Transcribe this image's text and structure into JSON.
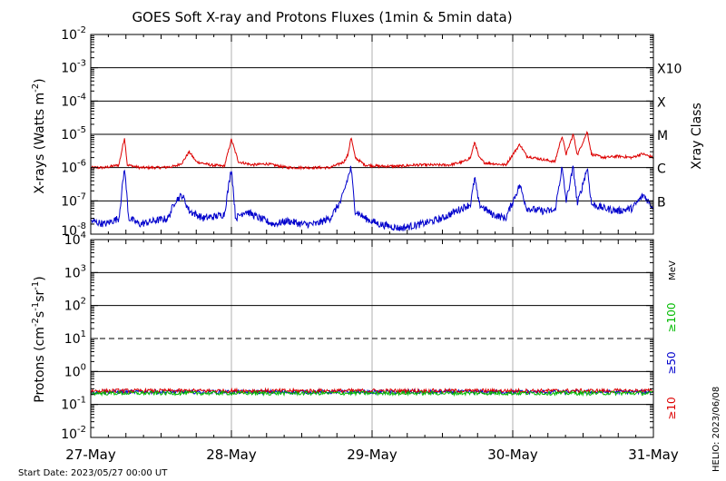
{
  "chart_data": [
    {
      "type": "line",
      "panel": "xray",
      "title": "GOES Soft X-ray and Protons Fluxes   (1min & 5min data)",
      "ylabel": "X-rays (Watts m",
      "ylabel_sup": "-2",
      "ylabel_end": ")",
      "y_scale": "log",
      "ylim": [
        1e-08,
        0.01
      ],
      "y_ticks": [
        {
          "exp": -8,
          "base": "10",
          "sup": "-8"
        },
        {
          "exp": -7,
          "base": "10",
          "sup": "-7"
        },
        {
          "exp": -6,
          "base": "10",
          "sup": "-6"
        },
        {
          "exp": -5,
          "base": "10",
          "sup": "-5"
        },
        {
          "exp": -4,
          "base": "10",
          "sup": "-4"
        },
        {
          "exp": -3,
          "base": "10",
          "sup": "-3"
        },
        {
          "exp": -2,
          "base": "10",
          "sup": "-2"
        }
      ],
      "grid_exps": [
        -7,
        -6,
        -5,
        -4,
        -3
      ],
      "right_label": "Xray Class",
      "class_labels": [
        {
          "exp": -7,
          "label": "B"
        },
        {
          "exp": -6,
          "label": "C"
        },
        {
          "exp": -5,
          "label": "M"
        },
        {
          "exp": -4,
          "label": "X"
        },
        {
          "exp": -3,
          "label": "X10"
        }
      ],
      "series": [
        {
          "color": "#dd0000",
          "values": [
            [
              0.0,
              1e-06
            ],
            [
              0.1,
              1e-06
            ],
            [
              0.2,
              1.2e-06
            ],
            [
              0.24,
              8e-06
            ],
            [
              0.26,
              1.2e-06
            ],
            [
              0.35,
              1e-06
            ],
            [
              0.5,
              1e-06
            ],
            [
              0.6,
              1.1e-06
            ],
            [
              0.65,
              1.4e-06
            ],
            [
              0.7,
              3e-06
            ],
            [
              0.75,
              1.5e-06
            ],
            [
              0.85,
              1.2e-06
            ],
            [
              0.95,
              1.1e-06
            ],
            [
              1.0,
              7e-06
            ],
            [
              1.05,
              1.5e-06
            ],
            [
              1.15,
              1.2e-06
            ],
            [
              1.25,
              1.3e-06
            ],
            [
              1.4,
              1e-06
            ],
            [
              1.6,
              1e-06
            ],
            [
              1.7,
              1e-06
            ],
            [
              1.75,
              1.2e-06
            ],
            [
              1.8,
              1.5e-06
            ],
            [
              1.83,
              2.5e-06
            ],
            [
              1.85,
              8.5e-06
            ],
            [
              1.88,
              2e-06
            ],
            [
              1.95,
              1.2e-06
            ],
            [
              2.05,
              1.1e-06
            ],
            [
              2.2,
              1.1e-06
            ],
            [
              2.3,
              1.2e-06
            ],
            [
              2.4,
              1.2e-06
            ],
            [
              2.55,
              1.2e-06
            ],
            [
              2.65,
              1.5e-06
            ],
            [
              2.7,
              2e-06
            ],
            [
              2.73,
              6e-06
            ],
            [
              2.76,
              2e-06
            ],
            [
              2.8,
              1.4e-06
            ],
            [
              2.95,
              1.2e-06
            ],
            [
              3.05,
              5e-06
            ],
            [
              3.1,
              2.2e-06
            ],
            [
              3.2,
              1.8e-06
            ],
            [
              3.3,
              1.5e-06
            ],
            [
              3.35,
              9e-06
            ],
            [
              3.38,
              2.5e-06
            ],
            [
              3.43,
              1e-05
            ],
            [
              3.46,
              2.4e-06
            ],
            [
              3.53,
              1.2e-05
            ],
            [
              3.56,
              2.5e-06
            ],
            [
              3.65,
              2e-06
            ],
            [
              3.75,
              2.2e-06
            ],
            [
              3.85,
              2e-06
            ],
            [
              3.92,
              2.6e-06
            ],
            [
              4.0,
              2e-06
            ]
          ]
        },
        {
          "color": "#0000cc",
          "values": [
            [
              0.0,
              2.5e-08
            ],
            [
              0.1,
              2e-08
            ],
            [
              0.2,
              3e-08
            ],
            [
              0.24,
              1e-06
            ],
            [
              0.27,
              3e-08
            ],
            [
              0.35,
              2e-08
            ],
            [
              0.45,
              2.5e-08
            ],
            [
              0.55,
              3e-08
            ],
            [
              0.6,
              1e-07
            ],
            [
              0.65,
              1.5e-07
            ],
            [
              0.7,
              5e-08
            ],
            [
              0.8,
              3e-08
            ],
            [
              0.9,
              3.5e-08
            ],
            [
              0.95,
              4e-08
            ],
            [
              1.0,
              1e-06
            ],
            [
              1.03,
              3e-08
            ],
            [
              1.1,
              5e-08
            ],
            [
              1.2,
              3e-08
            ],
            [
              1.3,
              2e-08
            ],
            [
              1.4,
              2.5e-08
            ],
            [
              1.5,
              2e-08
            ],
            [
              1.6,
              2e-08
            ],
            [
              1.7,
              3e-08
            ],
            [
              1.78,
              1e-07
            ],
            [
              1.85,
              1e-06
            ],
            [
              1.88,
              5e-08
            ],
            [
              1.95,
              3e-08
            ],
            [
              2.05,
              2e-08
            ],
            [
              2.2,
              1.5e-08
            ],
            [
              2.35,
              2e-08
            ],
            [
              2.5,
              3e-08
            ],
            [
              2.6,
              5e-08
            ],
            [
              2.7,
              8e-08
            ],
            [
              2.73,
              5e-07
            ],
            [
              2.76,
              8e-08
            ],
            [
              2.85,
              4e-08
            ],
            [
              2.95,
              3e-08
            ],
            [
              3.05,
              3e-07
            ],
            [
              3.1,
              6e-08
            ],
            [
              3.2,
              5e-08
            ],
            [
              3.3,
              5e-08
            ],
            [
              3.35,
              1e-06
            ],
            [
              3.38,
              1e-07
            ],
            [
              3.43,
              1e-06
            ],
            [
              3.46,
              8e-08
            ],
            [
              3.53,
              1e-06
            ],
            [
              3.56,
              8e-08
            ],
            [
              3.65,
              6e-08
            ],
            [
              3.75,
              5e-08
            ],
            [
              3.85,
              6e-08
            ],
            [
              3.93,
              1.5e-07
            ],
            [
              4.0,
              6e-08
            ]
          ]
        }
      ]
    },
    {
      "type": "line",
      "panel": "protons",
      "ylabel": "Protons (cm",
      "ylabel_parts": [
        {
          "t": "-2",
          "sup": true
        },
        {
          "t": "s",
          "sup": false
        },
        {
          "t": "-1",
          "sup": true
        },
        {
          "t": "sr",
          "sup": false
        },
        {
          "t": "-1",
          "sup": true
        },
        {
          "t": ")",
          "sup": false
        }
      ],
      "y_scale": "log",
      "ylim": [
        0.01,
        10000.0
      ],
      "y_ticks": [
        {
          "exp": -2,
          "base": "10",
          "sup": "-2"
        },
        {
          "exp": -1,
          "base": "10",
          "sup": "-1"
        },
        {
          "exp": 0,
          "base": "10",
          "sup": "0"
        },
        {
          "exp": 1,
          "base": "10",
          "sup": "1"
        },
        {
          "exp": 2,
          "base": "10",
          "sup": "2"
        },
        {
          "exp": 3,
          "base": "10",
          "sup": "3"
        },
        {
          "exp": 4,
          "base": "10",
          "sup": "4"
        }
      ],
      "grid_exps": [
        -1,
        0,
        2,
        3
      ],
      "threshold_exp": 1,
      "unit_label": "MeV",
      "energy_labels": [
        {
          "label": "≥100",
          "color": "#00bb00"
        },
        {
          "label": "≥50",
          "color": "#0000cc"
        },
        {
          "label": "≥10",
          "color": "#dd0000"
        }
      ],
      "series": [
        {
          "color": "#0000cc",
          "level": 0.24
        },
        {
          "color": "#dd0000",
          "level": 0.26
        },
        {
          "color": "#00bb00",
          "level": 0.22
        }
      ],
      "x_ticks": [
        "27-May",
        "28-May",
        "29-May",
        "30-May",
        "31-May"
      ],
      "xlim": [
        0,
        4
      ]
    }
  ],
  "footer": {
    "start_date": "Start Date: 2023/05/27 00:00 UT",
    "helio": "HELIO: 2023/06/08"
  }
}
